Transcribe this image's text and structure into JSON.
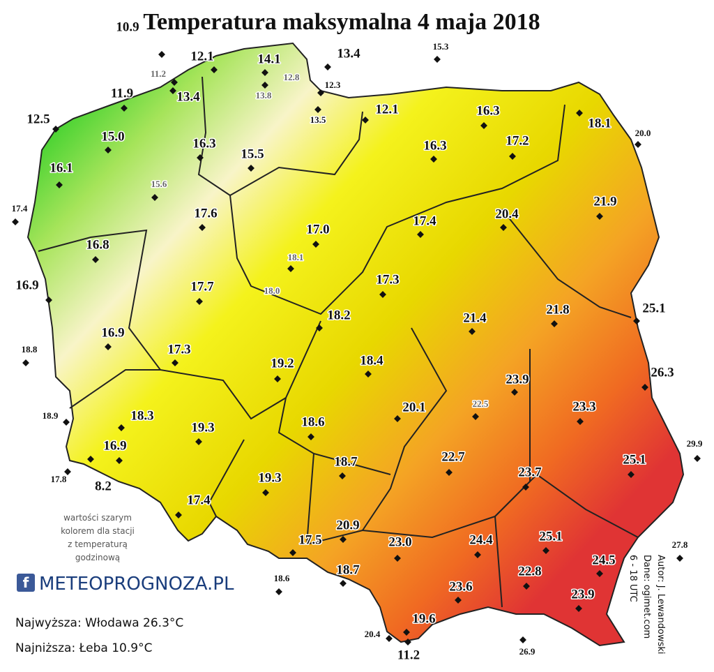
{
  "title": "Temperatura maksymalna 4 maja 2018",
  "stations": [
    {
      "label": "10.9",
      "color": "#111"
    },
    {
      "label": "12.1",
      "color": "#111"
    },
    {
      "label": "14.1",
      "color": "#111"
    },
    {
      "label": "13.4",
      "color": "#111"
    },
    {
      "label": "15.3",
      "color": "#111"
    },
    {
      "label": "11.2",
      "color": "#666"
    },
    {
      "label": "12.8",
      "color": "#666"
    },
    {
      "label": "12.3",
      "color": "#111"
    },
    {
      "label": "13.8",
      "color": "#666"
    },
    {
      "label": "11.9",
      "color": "#111"
    },
    {
      "label": "13.4",
      "color": "#111"
    },
    {
      "label": "13.5",
      "color": "#111"
    },
    {
      "label": "12.1",
      "color": "#111"
    },
    {
      "label": "16.3",
      "color": "#111"
    },
    {
      "label": "18.1",
      "color": "#111"
    },
    {
      "label": "20.0",
      "color": "#111"
    },
    {
      "label": "12.5",
      "color": "#111"
    },
    {
      "label": "15.0",
      "color": "#111"
    },
    {
      "label": "16.3",
      "color": "#111"
    },
    {
      "label": "15.5",
      "color": "#111"
    },
    {
      "label": "16.3",
      "color": "#111"
    },
    {
      "label": "17.2",
      "color": "#111"
    },
    {
      "label": "16.1",
      "color": "#111"
    },
    {
      "label": "15.6",
      "color": "#666"
    },
    {
      "label": "21.9",
      "color": "#111"
    },
    {
      "label": "17.4",
      "color": "#111"
    },
    {
      "label": "17.6",
      "color": "#111"
    },
    {
      "label": "17.4",
      "color": "#111"
    },
    {
      "label": "20.4",
      "color": "#111"
    },
    {
      "label": "17.0",
      "color": "#111"
    },
    {
      "label": "16.8",
      "color": "#111"
    },
    {
      "label": "18.1",
      "color": "#666"
    },
    {
      "label": "16.9",
      "color": "#111"
    },
    {
      "label": "17.7",
      "color": "#111"
    },
    {
      "label": "18.0",
      "color": "#666"
    },
    {
      "label": "17.3",
      "color": "#111"
    },
    {
      "label": "25.1",
      "color": "#111"
    },
    {
      "label": "21.8",
      "color": "#111"
    },
    {
      "label": "18.2",
      "color": "#111"
    },
    {
      "label": "21.4",
      "color": "#111"
    },
    {
      "label": "16.9",
      "color": "#111"
    },
    {
      "label": "17.3",
      "color": "#111"
    },
    {
      "label": "18.8",
      "color": "#111"
    },
    {
      "label": "19.2",
      "color": "#111"
    },
    {
      "label": "18.4",
      "color": "#111"
    },
    {
      "label": "26.3",
      "color": "#111"
    },
    {
      "label": "23.9",
      "color": "#111"
    },
    {
      "label": "23.3",
      "color": "#111"
    },
    {
      "label": "20.1",
      "color": "#111"
    },
    {
      "label": "22.5",
      "color": "#666"
    },
    {
      "label": "18.9",
      "color": "#111"
    },
    {
      "label": "18.3",
      "color": "#111"
    },
    {
      "label": "19.3",
      "color": "#111"
    },
    {
      "label": "18.6",
      "color": "#111"
    },
    {
      "label": "29.9",
      "color": "#111"
    },
    {
      "label": "22.7",
      "color": "#111"
    },
    {
      "label": "16.9",
      "color": "#111"
    },
    {
      "label": "18.7",
      "color": "#111"
    },
    {
      "label": "23.7",
      "color": "#111"
    },
    {
      "label": "25.1",
      "color": "#111"
    },
    {
      "label": "17.8",
      "color": "#111"
    },
    {
      "label": "8.2",
      "color": "#111"
    },
    {
      "label": "19.3",
      "color": "#111"
    },
    {
      "label": "17.4",
      "color": "#111"
    },
    {
      "label": "20.9",
      "color": "#111"
    },
    {
      "label": "17.5",
      "color": "#111"
    },
    {
      "label": "23.0",
      "color": "#111"
    },
    {
      "label": "24.4",
      "color": "#111"
    },
    {
      "label": "25.1",
      "color": "#111"
    },
    {
      "label": "24.5",
      "color": "#111"
    },
    {
      "label": "27.8",
      "color": "#111"
    },
    {
      "label": "18.7",
      "color": "#111"
    },
    {
      "label": "22.8",
      "color": "#111"
    },
    {
      "label": "23.6",
      "color": "#111"
    },
    {
      "label": "23.9",
      "color": "#111"
    },
    {
      "label": "18.6",
      "color": "#111"
    },
    {
      "label": "19.6",
      "color": "#111"
    },
    {
      "label": "20.4",
      "color": "#111"
    },
    {
      "label": "11.2",
      "color": "#111"
    },
    {
      "label": "26.9",
      "color": "#111"
    }
  ],
  "note": [
    "wartości szarym",
    "kolorem dla stacji",
    "z temperaturą",
    "godzinową"
  ],
  "logo": "METEOPROGNOZA.PL",
  "highest": "Najwyższa: Włodawa 26.3°C",
  "lowest": "Najniższa: Łeba 10.9°C",
  "credits": [
    "Autor: J. Lewandowski",
    "Dane: ogimet.com",
    "6 - 18 UTC"
  ]
}
